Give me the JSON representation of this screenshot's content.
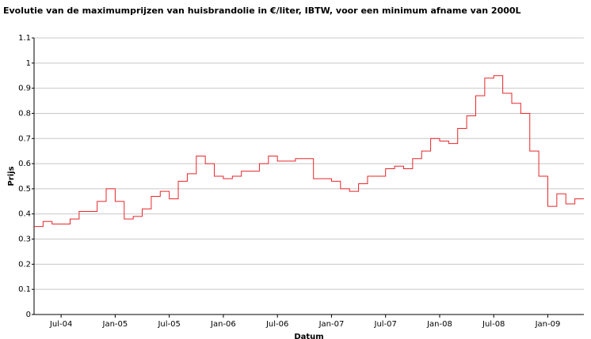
{
  "chart_data": {
    "type": "line",
    "title": "Evolutie van de maximumprijzen van huisbrandolie in €/liter, IBTW, voor een minimum afname van 2000L",
    "x_label": "Datum",
    "y_label": "Prijs",
    "grid": true,
    "step": true,
    "x": [
      "2004-04",
      "2004-05",
      "2004-06",
      "2004-07",
      "2004-08",
      "2004-09",
      "2004-10",
      "2004-11",
      "2004-12",
      "2005-01",
      "2005-02",
      "2005-03",
      "2005-04",
      "2005-05",
      "2005-06",
      "2005-07",
      "2005-08",
      "2005-09",
      "2005-10",
      "2005-11",
      "2005-12",
      "2006-01",
      "2006-02",
      "2006-03",
      "2006-04",
      "2006-05",
      "2006-06",
      "2006-07",
      "2006-08",
      "2006-09",
      "2006-10",
      "2006-11",
      "2006-12",
      "2007-01",
      "2007-02",
      "2007-03",
      "2007-04",
      "2007-05",
      "2007-06",
      "2007-07",
      "2007-08",
      "2007-09",
      "2007-10",
      "2007-11",
      "2007-12",
      "2008-01",
      "2008-02",
      "2008-03",
      "2008-04",
      "2008-05",
      "2008-06",
      "2008-07",
      "2008-08",
      "2008-09",
      "2008-10",
      "2008-11",
      "2008-12",
      "2009-01",
      "2009-02",
      "2009-03",
      "2009-04"
    ],
    "series": [
      {
        "name": "Prijs",
        "color": "#e8262a",
        "values": [
          0.35,
          0.37,
          0.36,
          0.36,
          0.38,
          0.41,
          0.41,
          0.45,
          0.5,
          0.45,
          0.38,
          0.39,
          0.42,
          0.47,
          0.49,
          0.46,
          0.53,
          0.56,
          0.63,
          0.6,
          0.55,
          0.54,
          0.55,
          0.57,
          0.57,
          0.6,
          0.63,
          0.61,
          0.61,
          0.62,
          0.62,
          0.54,
          0.54,
          0.53,
          0.5,
          0.49,
          0.52,
          0.55,
          0.55,
          0.58,
          0.59,
          0.58,
          0.62,
          0.65,
          0.7,
          0.69,
          0.68,
          0.74,
          0.79,
          0.87,
          0.94,
          0.95,
          0.88,
          0.84,
          0.8,
          0.65,
          0.55,
          0.43,
          0.48,
          0.44,
          0.46
        ]
      }
    ],
    "xlim": [
      "2004-04",
      "2009-05"
    ],
    "xticks": [
      {
        "value": "2004-07",
        "label": "Jul-04"
      },
      {
        "value": "2005-01",
        "label": "Jan-05"
      },
      {
        "value": "2005-07",
        "label": "Jul-05"
      },
      {
        "value": "2006-01",
        "label": "Jan-06"
      },
      {
        "value": "2006-07",
        "label": "Jul-06"
      },
      {
        "value": "2007-01",
        "label": "Jan-07"
      },
      {
        "value": "2007-07",
        "label": "Jul-07"
      },
      {
        "value": "2008-01",
        "label": "Jan-08"
      },
      {
        "value": "2008-07",
        "label": "Jul-08"
      },
      {
        "value": "2009-01",
        "label": "Jan-09"
      }
    ],
    "ylim": [
      0,
      1.1
    ],
    "yticks": [
      0,
      0.1,
      0.2,
      0.3,
      0.4,
      0.5,
      0.6,
      0.7,
      0.8,
      0.9,
      1,
      1.1
    ]
  }
}
